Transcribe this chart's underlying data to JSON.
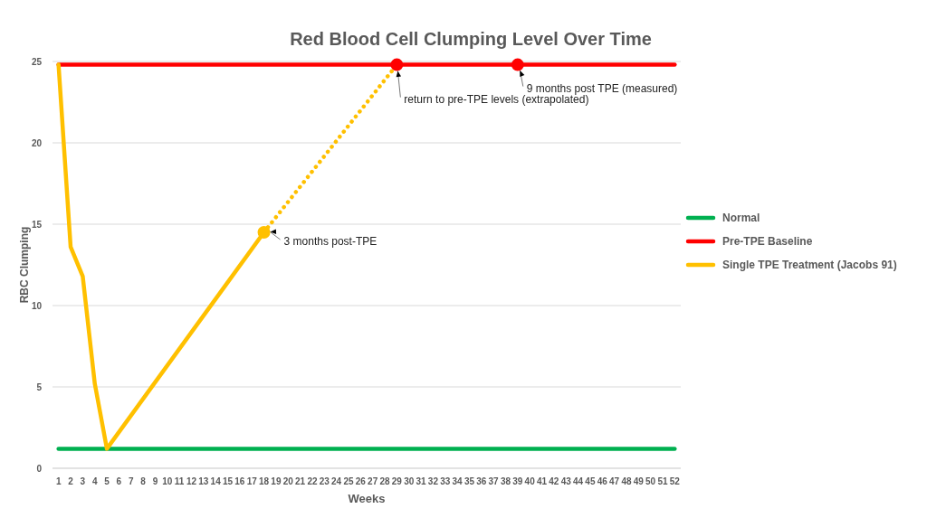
{
  "chart_data": {
    "type": "line",
    "title": "Red Blood Cell Clumping Level Over Time",
    "xlabel": "Weeks",
    "ylabel": "RBC Clumping",
    "xlim": [
      0.5,
      52.5
    ],
    "xticks": [
      1,
      2,
      3,
      4,
      5,
      6,
      7,
      8,
      9,
      10,
      11,
      12,
      13,
      14,
      15,
      16,
      17,
      18,
      19,
      20,
      21,
      22,
      23,
      24,
      25,
      26,
      27,
      28,
      29,
      30,
      31,
      32,
      33,
      34,
      35,
      36,
      37,
      38,
      39,
      40,
      41,
      42,
      43,
      44,
      45,
      46,
      47,
      48,
      49,
      50,
      51,
      52
    ],
    "ylim": [
      0,
      25
    ],
    "yticks": [
      0,
      5,
      10,
      15,
      20,
      25
    ],
    "grid": "y",
    "legend": "right",
    "marker": "none",
    "line_style": "solid",
    "series": [
      {
        "name": "Normal",
        "color": "#00b050",
        "x": [
          1,
          52
        ],
        "values": [
          1.2,
          1.2
        ]
      },
      {
        "name": "Pre-TPE Baseline",
        "color": "#ff0000",
        "x": [
          1,
          52
        ],
        "values": [
          24.8,
          24.8
        ]
      },
      {
        "name": "Single TPE Treatment (Jacobs 91)",
        "color": "#ffc000",
        "x": [
          1,
          2,
          3,
          4,
          5,
          18
        ],
        "values": [
          24.8,
          13.6,
          11.8,
          5.2,
          1.2,
          14.5
        ]
      },
      {
        "color": "#ffc000",
        "x": [
          18,
          29
        ],
        "values": [
          14.5,
          24.8
        ],
        "line_style": "dotted"
      },
      {
        "type": "scatter",
        "color": "#ffc000",
        "x": [
          18
        ],
        "values": [
          14.5
        ],
        "marker": "circle"
      },
      {
        "type": "scatter",
        "color": "#ff0000",
        "x": [
          29,
          39
        ],
        "values": [
          24.8,
          24.8
        ],
        "marker": "circle"
      }
    ],
    "annotations": [
      {
        "text": "3 months post-TPE",
        "x": 18,
        "y": 14.5
      },
      {
        "text": "return to pre-TPE levels (extrapolated)",
        "x": 29,
        "y": 24.8
      },
      {
        "text": "9 months post TPE (measured)",
        "x": 39,
        "y": 24.8
      }
    ]
  }
}
